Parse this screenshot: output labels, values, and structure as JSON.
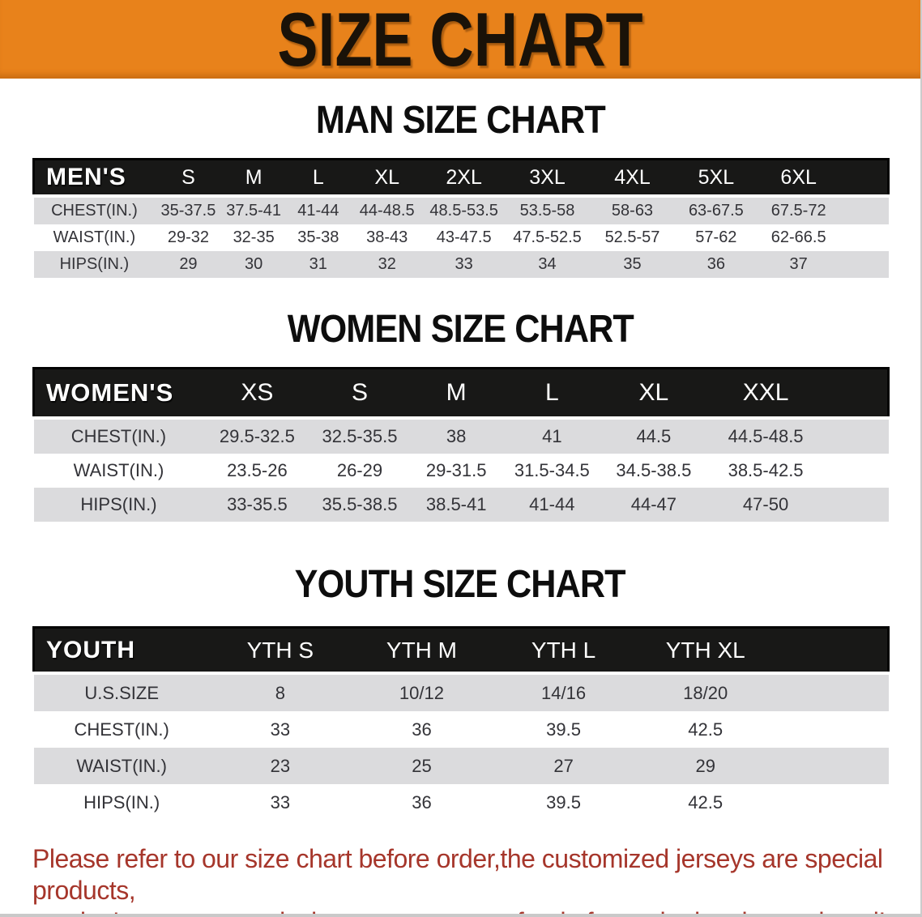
{
  "banner": {
    "title": "SIZE CHART"
  },
  "sections": [
    {
      "title": "MAN SIZE CHART",
      "corner_label": "MEN'S",
      "columns": [
        "S",
        "M",
        "L",
        "XL",
        "2XL",
        "3XL",
        "4XL",
        "5XL",
        "6XL"
      ],
      "rows": [
        {
          "label": "CHEST(IN.)",
          "values": [
            "35-37.5",
            "37.5-41",
            "41-44",
            "44-48.5",
            "48.5-53.5",
            "53.5-58",
            "58-63",
            "63-67.5",
            "67.5-72"
          ]
        },
        {
          "label": "WAIST(IN.)",
          "values": [
            "29-32",
            "32-35",
            "35-38",
            "38-43",
            "43-47.5",
            "47.5-52.5",
            "52.5-57",
            "57-62",
            "62-66.5"
          ]
        },
        {
          "label": "HIPS(IN.)",
          "values": [
            "29",
            "30",
            "31",
            "32",
            "33",
            "34",
            "35",
            "36",
            "37"
          ]
        }
      ]
    },
    {
      "title": "WOMEN SIZE CHART",
      "corner_label": "WOMEN'S",
      "columns": [
        "XS",
        "S",
        "M",
        "L",
        "XL",
        "XXL"
      ],
      "rows": [
        {
          "label": "CHEST(IN.)",
          "values": [
            "29.5-32.5",
            "32.5-35.5",
            "38",
            "41",
            "44.5",
            "44.5-48.5"
          ]
        },
        {
          "label": "WAIST(IN.)",
          "values": [
            "23.5-26",
            "26-29",
            "29-31.5",
            "31.5-34.5",
            "34.5-38.5",
            "38.5-42.5"
          ]
        },
        {
          "label": "HIPS(IN.)",
          "values": [
            "33-35.5",
            "35.5-38.5",
            "38.5-41",
            "41-44",
            "44-47",
            "47-50"
          ]
        }
      ]
    },
    {
      "title": "YOUTH SIZE CHART",
      "corner_label": "YOUTH",
      "columns": [
        "YTH S",
        "YTH M",
        "YTH L",
        "YTH XL"
      ],
      "rows": [
        {
          "label": "U.S.SIZE",
          "values": [
            "8",
            "10/12",
            "14/16",
            "18/20"
          ]
        },
        {
          "label": "CHEST(IN.)",
          "values": [
            "33",
            "36",
            "39.5",
            "42.5"
          ]
        },
        {
          "label": "WAIST(IN.)",
          "values": [
            "23",
            "25",
            "27",
            "29"
          ]
        },
        {
          "label": "HIPS(IN.)",
          "values": [
            "33",
            "36",
            "39.5",
            "42.5"
          ]
        }
      ]
    }
  ],
  "disclaimer": {
    "line1": "Please refer to our size chart before order,the customized jerseys are special products,",
    "line2": "we don't accept cancel, change, teturn or refund after order has been placed!"
  },
  "colors": {
    "banner_bg": "#E8821B",
    "banner_text": "#1a1208",
    "table_header_band": "#181817",
    "row_stripe_gray": "#DBDBDD",
    "body_text": "#333338",
    "disclaimer_red": "#A6362B"
  }
}
